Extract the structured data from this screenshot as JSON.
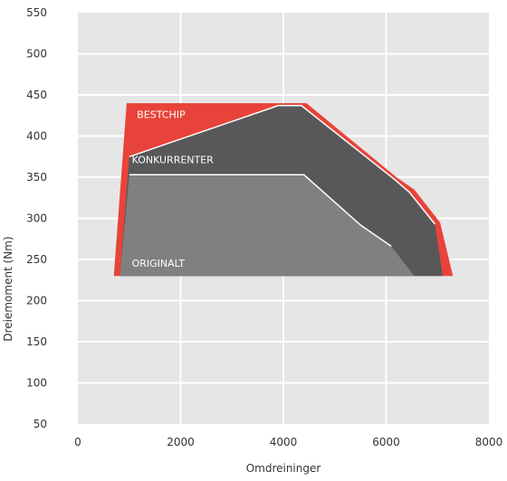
{
  "chart_data": {
    "type": "area",
    "xlabel": "Omdreininger",
    "ylabel": "Dreiemoment (Nm)",
    "xlim": [
      0,
      8000
    ],
    "ylim": [
      50,
      550
    ],
    "x_ticks": [
      0,
      2000,
      4000,
      6000,
      8000
    ],
    "y_ticks": [
      50,
      100,
      150,
      200,
      250,
      300,
      350,
      400,
      450,
      500,
      550
    ],
    "grid": true,
    "baseline": 230,
    "series": [
      {
        "name": "BESTCHIP",
        "color": "#e8433a",
        "points": [
          [
            700,
            230
          ],
          [
            950,
            440
          ],
          [
            4450,
            440
          ],
          [
            6200,
            350
          ],
          [
            6550,
            335
          ],
          [
            7050,
            295
          ],
          [
            7300,
            230
          ]
        ]
      },
      {
        "name": "KONKURRENTER",
        "color": "#58585a",
        "points": [
          [
            820,
            230
          ],
          [
            1000,
            375
          ],
          [
            3900,
            437
          ],
          [
            4350,
            437
          ],
          [
            6150,
            348
          ],
          [
            6450,
            332
          ],
          [
            6950,
            293
          ],
          [
            7100,
            230
          ]
        ]
      },
      {
        "name": "ORIGINALT",
        "color": "#808083",
        "points": [
          [
            820,
            230
          ],
          [
            1000,
            353
          ],
          [
            4400,
            353
          ],
          [
            5500,
            292
          ],
          [
            6100,
            266
          ],
          [
            6550,
            230
          ]
        ]
      }
    ]
  }
}
